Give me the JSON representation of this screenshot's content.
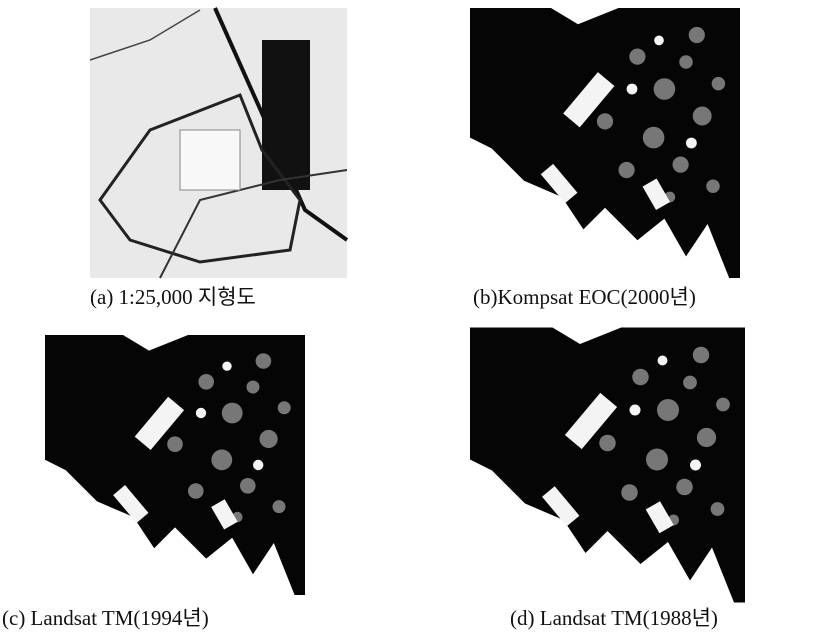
{
  "figure": {
    "panels": [
      {
        "caption": "(a) 1:25,000 지형도"
      },
      {
        "caption": "(b)Kompsat EOC(2000년)"
      },
      {
        "caption": "(c) Landsat TM(1994년)"
      },
      {
        "caption": "(d) Landsat TM(1988년)"
      }
    ]
  }
}
